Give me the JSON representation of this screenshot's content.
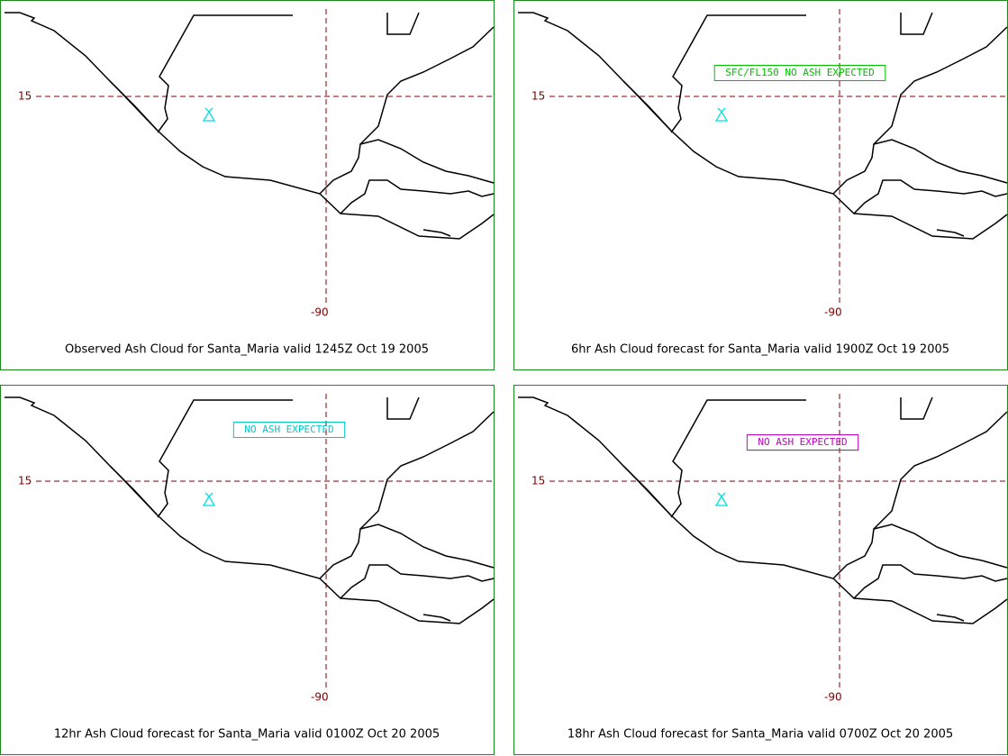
{
  "panels": [
    {
      "caption": "Observed Ash Cloud for Santa_Maria valid 1245Z Oct 19 2005",
      "lat_label": "15",
      "lon_label": "-90"
    },
    {
      "caption": "6hr Ash Cloud forecast for Santa_Maria valid 1900Z Oct 19 2005",
      "lat_label": "15",
      "lon_label": "-90",
      "annotation": "SFC/FL150 NO ASH EXPECTED",
      "annotation_color": "#00c000"
    },
    {
      "caption": "12hr Ash Cloud forecast for Santa_Maria valid 0100Z Oct 20 2005",
      "lat_label": "15",
      "lon_label": "-90",
      "annotation": "NO ASH EXPECTED",
      "annotation_color": "#00c8c8"
    },
    {
      "caption": "18hr Ash Cloud forecast for Santa_Maria valid 0700Z Oct 20 2005",
      "lat_label": "15",
      "lon_label": "-90",
      "annotation": "NO ASH EXPECTED",
      "annotation_color": "#c000c0"
    }
  ]
}
